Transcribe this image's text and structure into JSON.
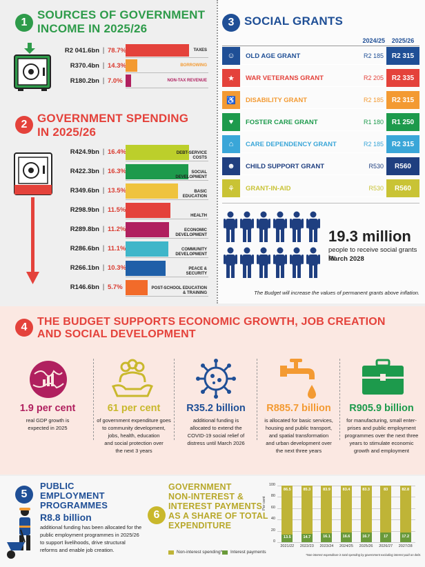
{
  "section1": {
    "number": "1",
    "title_line1": "SOURCES OF GOVERNMENT",
    "title_line2": "INCOME IN 2025/26",
    "rows": [
      {
        "amount": "R2 041.6bn",
        "pct": "78.7%",
        "label": "TAXES",
        "value": 78.7,
        "color": "#e4423b"
      },
      {
        "amount": "R370.4bn",
        "pct": "14.3%",
        "label": "BORROWING",
        "value": 14.3,
        "color": "#f39a32"
      },
      {
        "amount": "R180.2bn",
        "pct": "7.0%",
        "label": "NON-TAX REVENUE",
        "value": 7.0,
        "color": "#b0205f"
      }
    ]
  },
  "section2": {
    "number": "2",
    "title_line1": "GOVERNMENT SPENDING",
    "title_line2": "IN 2025/26",
    "rows": [
      {
        "amount": "R424.9bn",
        "pct": "16.4%",
        "label1": "DEBT-SERVICE",
        "label2": "COSTS",
        "value": 16.4,
        "color": "#bccf2b"
      },
      {
        "amount": "R422.3bn",
        "pct": "16.3%",
        "label1": "SOCIAL",
        "label2": "DEVELOPMENT",
        "value": 16.3,
        "color": "#1d9a4c"
      },
      {
        "amount": "R349.6bn",
        "pct": "13.5%",
        "label1": "BASIC",
        "label2": "EDUCATION",
        "value": 13.5,
        "color": "#efc33e"
      },
      {
        "amount": "R298.9bn",
        "pct": "11.5%",
        "label1": "HEALTH",
        "label2": "",
        "value": 11.5,
        "color": "#e4423b"
      },
      {
        "amount": "R289.8bn",
        "pct": "11.2%",
        "label1": "ECONOMIC",
        "label2": "DEVELOPMENT",
        "value": 11.2,
        "color": "#b0205f"
      },
      {
        "amount": "R286.6bn",
        "pct": "11.1%",
        "label1": "COMMUNITY",
        "label2": "DEVELOPMENT",
        "value": 11.1,
        "color": "#3fb6c9"
      },
      {
        "amount": "R266.1bn",
        "pct": "10.3%",
        "label1": "PEACE &",
        "label2": "SECURITY",
        "value": 10.3,
        "color": "#1f5fa8"
      },
      {
        "amount": "R146.6bn",
        "pct": "5.7%",
        "label1": "POST-SCHOOL EDUCATION",
        "label2": "& TRAINING",
        "value": 5.7,
        "color": "#f26b2a"
      }
    ]
  },
  "section3": {
    "number": "3",
    "title": "SOCIAL GRANTS",
    "col_old": "2024/25",
    "col_new": "2025/26",
    "grants": [
      {
        "name": "OLD AGE GRANT",
        "old": "R2 185",
        "new": "R2 315",
        "color": "#1f4f96",
        "icon": "elderly-icon",
        "glyph": "☺"
      },
      {
        "name": "WAR VETERANS GRANT",
        "old": "R2 205",
        "new": "R2 335",
        "color": "#e4423b",
        "icon": "medal-icon",
        "glyph": "★"
      },
      {
        "name": "DISABILITY GRANT",
        "old": "R2 185",
        "new": "R2 315",
        "color": "#f39a32",
        "icon": "wheelchair-icon",
        "glyph": "♿"
      },
      {
        "name": "FOSTER CARE GRANT",
        "old": "R1 180",
        "new": "R1 250",
        "color": "#1d9a4c",
        "icon": "heart-hands-icon",
        "glyph": "♥"
      },
      {
        "name": "CARE DEPENDENCY GRANT",
        "old": "R2 185",
        "new": "R2 315",
        "color": "#3aa6d8",
        "icon": "house-icon",
        "glyph": "⌂"
      },
      {
        "name": "CHILD SUPPORT GRANT",
        "old": "R530",
        "new": "R560",
        "color": "#1f3f80",
        "icon": "child-icon",
        "glyph": "☻"
      },
      {
        "name": "GRANT-IN-AID",
        "old": "R530",
        "new": "R560",
        "color": "#c9c335",
        "icon": "care-icon",
        "glyph": "⚘"
      }
    ],
    "recipients_value": "19.3 million",
    "recipients_text_1": "people to receive social grants by",
    "recipients_text_2": "March 2028",
    "note": "The Budget will increase the values of permanent grants above inflation."
  },
  "section4": {
    "number": "4",
    "title_line1": "THE BUDGET SUPPORTS ECONOMIC GROWTH, JOB CREATION",
    "title_line2": "AND SOCIAL DEVELOPMENT",
    "items": [
      {
        "value": "1.9 per cent",
        "color": "#b0205f",
        "icon": "globe-chart-icon",
        "lines": [
          "real GDP growth is",
          "expected in 2025"
        ]
      },
      {
        "value": "61 per cent",
        "color": "#c9b82c",
        "icon": "people-hands-icon",
        "lines": [
          "of government expenditure goes",
          "to community development,",
          "jobs, health, education",
          "and social protection over",
          "the next 3 years"
        ]
      },
      {
        "value": "R35.2 billion",
        "color": "#1f4f96",
        "icon": "virus-icon",
        "lines": [
          "additional funding is",
          "allocated to extend the",
          "COVID-19 social relief of",
          "distress until March 2026"
        ]
      },
      {
        "value": "R885.7 billion",
        "color": "#f39a32",
        "icon": "water-tap-icon",
        "lines": [
          "is allocated for basic services,",
          "housing and public transport,",
          "and spatial transformation",
          "and urban development over",
          "the next three years"
        ]
      },
      {
        "value": "R905.9 billion",
        "color": "#1d9a4c",
        "icon": "briefcase-icon",
        "lines": [
          "for manufacturing, small enter-",
          "prises and public employment",
          "programmes over the next three",
          "years to stimulate economic",
          "growth and employment"
        ]
      }
    ]
  },
  "section5": {
    "number": "5",
    "title_line1": "PUBLIC",
    "title_line2": "EMPLOYMENT",
    "title_line3": "PROGRAMMES",
    "value": "R8.8 billion",
    "lines": [
      "additional funding has been allocated for the",
      "public employment programmes in 2025/26",
      "to support livelihoods, drive structural",
      "reforms and enable job creation."
    ]
  },
  "section6": {
    "number": "6",
    "title_line1": "GOVERNMENT",
    "title_line2": "NON-INTEREST &",
    "title_line3": "INTEREST PAYMENTS",
    "title_line4": "AS A SHARE OF TOTAL",
    "title_line5": "EXPENDITURE"
  },
  "chart_data": {
    "type": "bar",
    "stacked": true,
    "categories": [
      "2021/22",
      "2022/23",
      "2023/24",
      "2024/25",
      "2025/26",
      "2026/27",
      "2027/28"
    ],
    "series": [
      {
        "name": "Non-interest spending*",
        "values": [
          86.5,
          85.3,
          83.9,
          83.4,
          83.3,
          83.0,
          82.8
        ],
        "color": "#bfb437"
      },
      {
        "name": "Interest payments",
        "values": [
          13.5,
          14.7,
          16.1,
          16.6,
          16.7,
          17.0,
          17.2
        ],
        "color": "#6a9a3a"
      }
    ],
    "ylabel": "Per cent",
    "ylim": [
      0,
      100
    ],
    "yticks": [
      "0",
      "20",
      "40",
      "60",
      "80",
      "100"
    ],
    "footnote": "*Non-interest expenditure is total spending by government excluding interest paid on debt."
  }
}
